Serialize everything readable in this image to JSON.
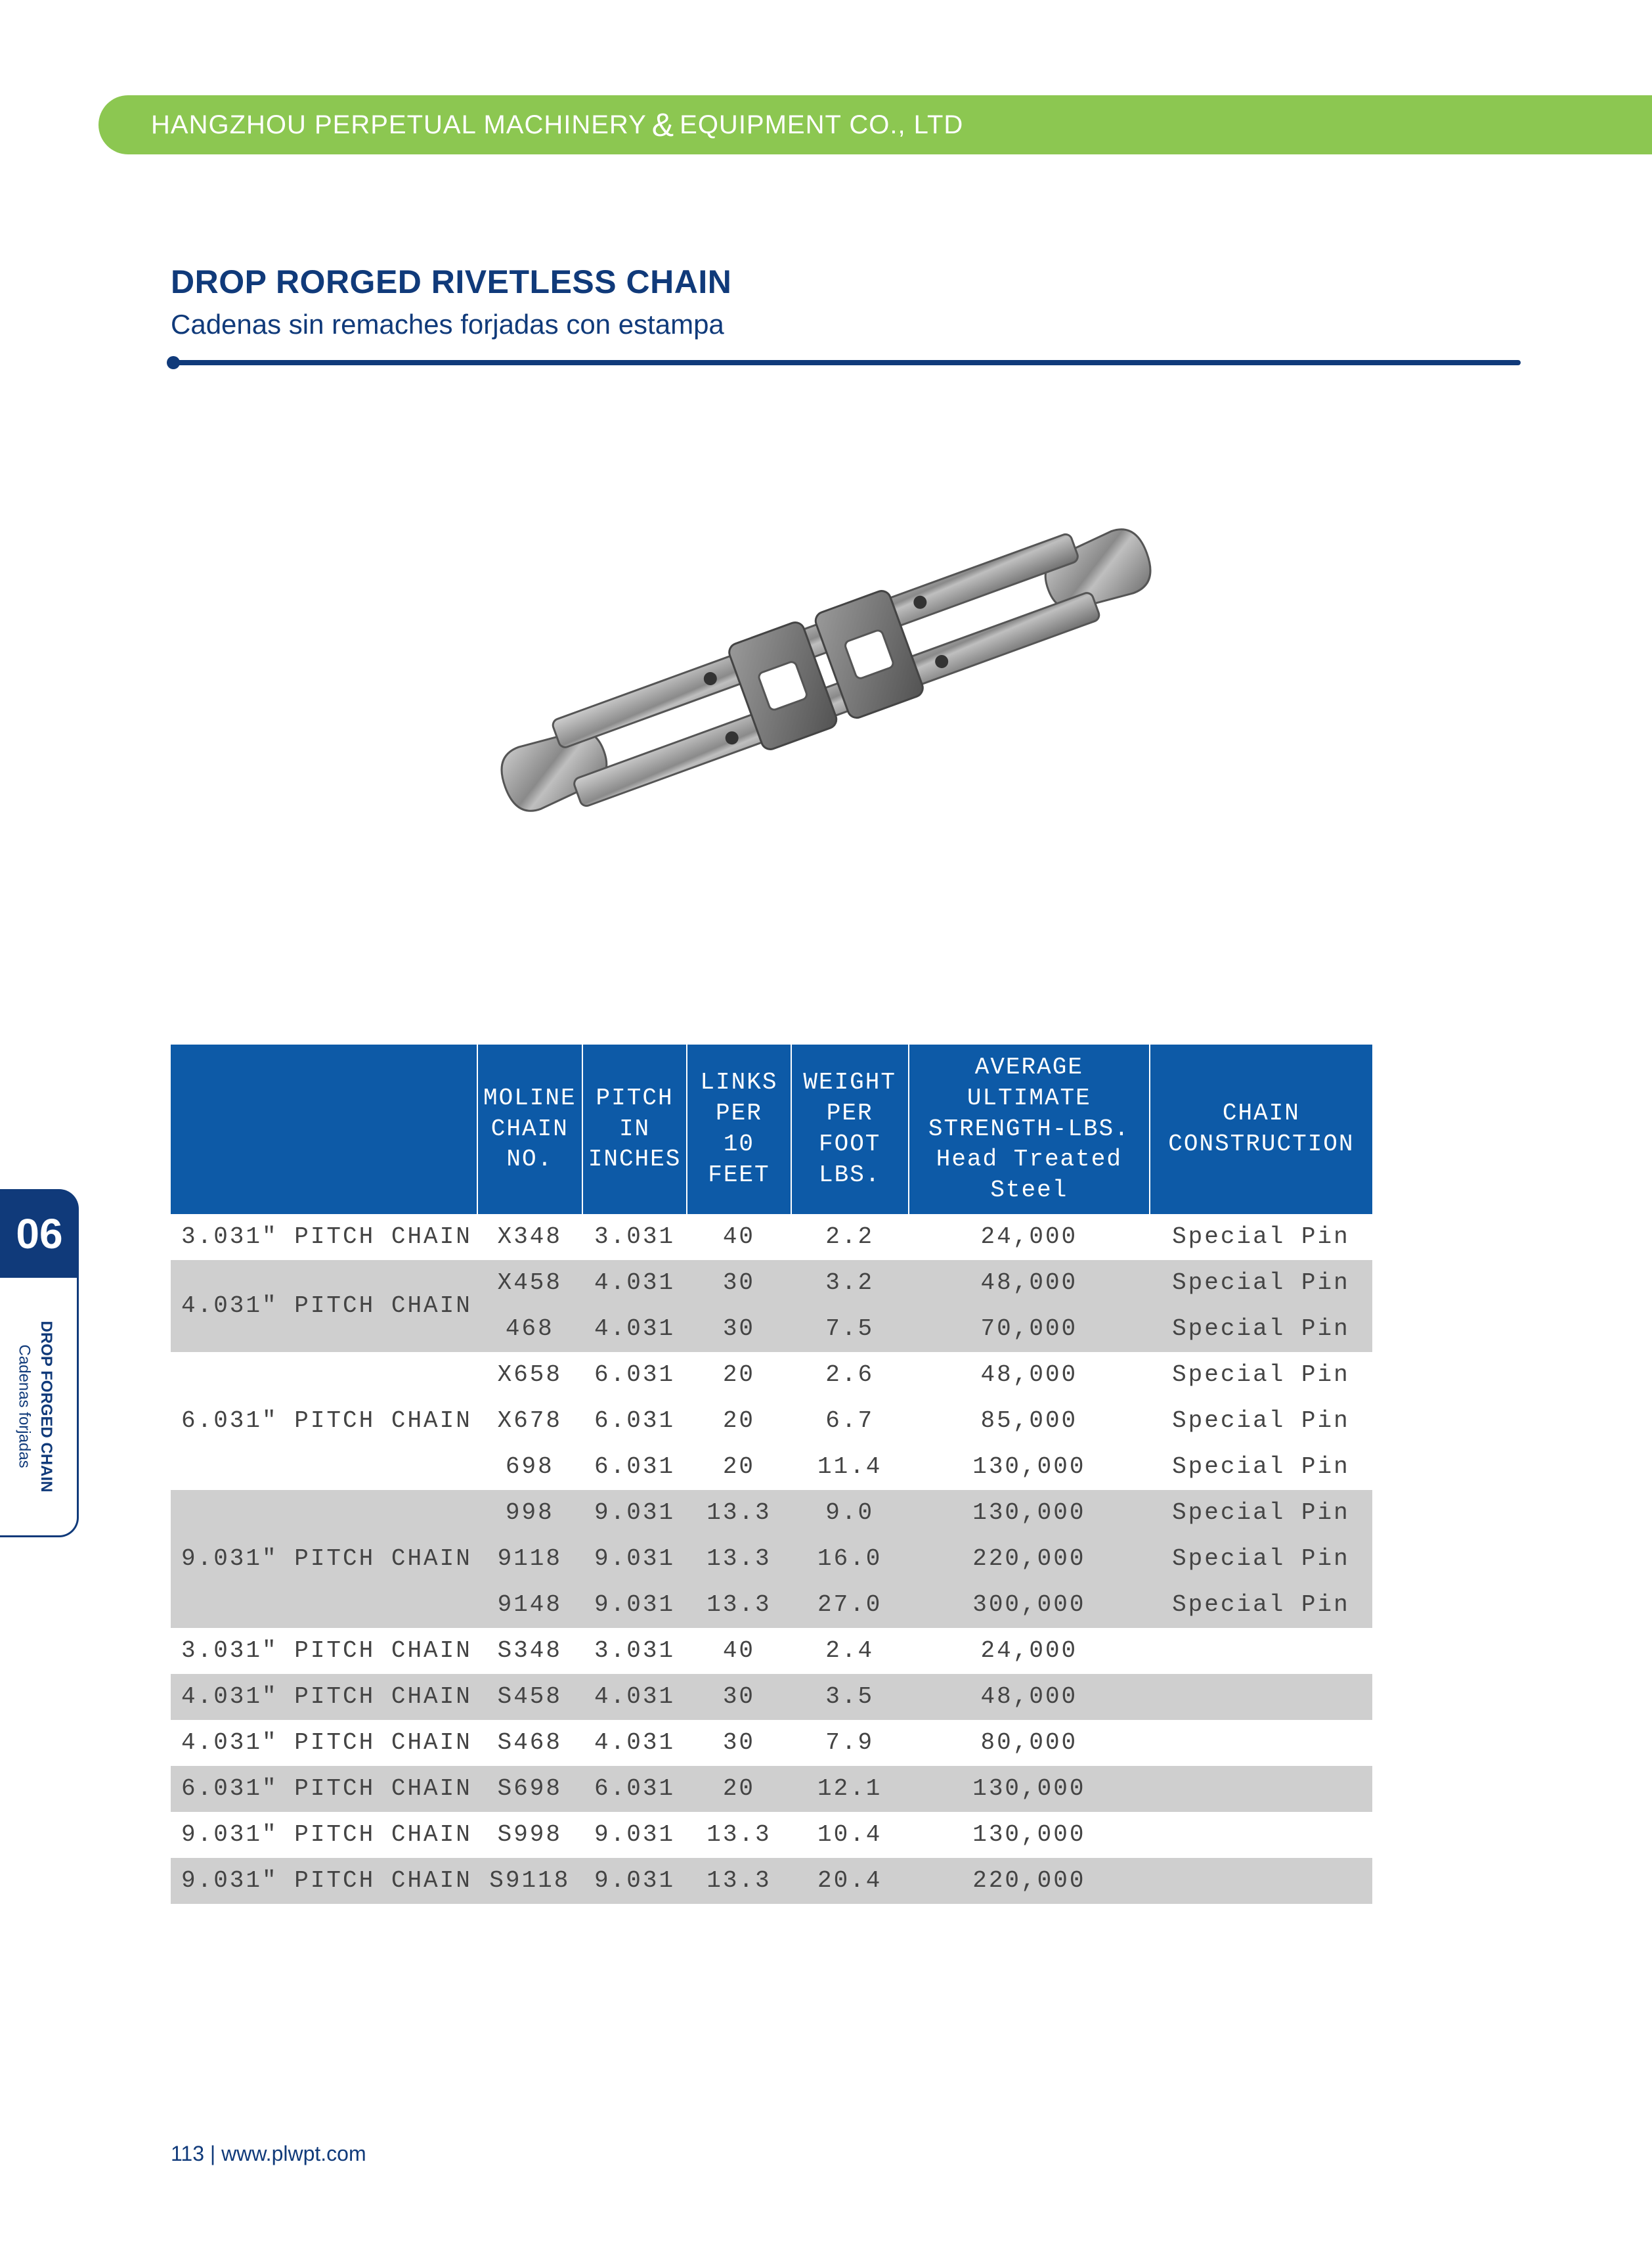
{
  "header": {
    "company_left": "HANGZHOU PERPETUAL MACHINERY",
    "amp": "&",
    "company_right": "EQUIPMENT CO., LTD"
  },
  "title": {
    "en": "DROP RORGED RIVETLESS CHAIN",
    "es": "Cadenas sin remaches forjadas con estampa"
  },
  "side": {
    "num": "06",
    "line1": "DROP FORGED CHAIN",
    "line2": "Cadenas forjadas"
  },
  "footer": {
    "page": "113",
    "sep": "|",
    "url": "www.plwpt.com"
  },
  "table": {
    "columns": [
      "",
      "MOLINE CHAIN NO.",
      "PITCH IN INCHES",
      "LINKS PER 10 FEET",
      "WEIGHT PER FOOT LBS.",
      "AVERAGE ULTIMATE STRENGTH-LBS. Head Treated Steel",
      "CHAIN CONSTRUCTION"
    ],
    "col_widths": [
      "360px",
      "160px",
      "150px",
      "170px",
      "190px",
      "440px",
      "360px"
    ],
    "groups": [
      {
        "label": "3.031\" PITCH CHAIN",
        "shade": "light",
        "rows": [
          {
            "no": "X348",
            "pitch": "3.031",
            "links": "40",
            "weight": "2.2",
            "strength": "24,000",
            "constr": "Special Pin"
          }
        ]
      },
      {
        "label": "4.031\" PITCH CHAIN",
        "shade": "dark",
        "rows": [
          {
            "no": "X458",
            "pitch": "4.031",
            "links": "30",
            "weight": "3.2",
            "strength": "48,000",
            "constr": "Special Pin"
          },
          {
            "no": "468",
            "pitch": "4.031",
            "links": "30",
            "weight": "7.5",
            "strength": "70,000",
            "constr": "Special Pin"
          }
        ]
      },
      {
        "label": "6.031\" PITCH CHAIN",
        "shade": "light",
        "rows": [
          {
            "no": "X658",
            "pitch": "6.031",
            "links": "20",
            "weight": "2.6",
            "strength": "48,000",
            "constr": "Special Pin"
          },
          {
            "no": "X678",
            "pitch": "6.031",
            "links": "20",
            "weight": "6.7",
            "strength": "85,000",
            "constr": "Special Pin"
          },
          {
            "no": "698",
            "pitch": "6.031",
            "links": "20",
            "weight": "11.4",
            "strength": "130,000",
            "constr": "Special Pin"
          }
        ]
      },
      {
        "label": "9.031\" PITCH CHAIN",
        "shade": "dark",
        "rows": [
          {
            "no": "998",
            "pitch": "9.031",
            "links": "13.3",
            "weight": "9.0",
            "strength": "130,000",
            "constr": "Special Pin"
          },
          {
            "no": "9118",
            "pitch": "9.031",
            "links": "13.3",
            "weight": "16.0",
            "strength": "220,000",
            "constr": "Special Pin"
          },
          {
            "no": "9148",
            "pitch": "9.031",
            "links": "13.3",
            "weight": "27.0",
            "strength": "300,000",
            "constr": "Special Pin"
          }
        ]
      },
      {
        "label": "3.031\" PITCH CHAIN",
        "shade": "light",
        "rows": [
          {
            "no": "S348",
            "pitch": "3.031",
            "links": "40",
            "weight": "2.4",
            "strength": "24,000",
            "constr": ""
          }
        ]
      },
      {
        "label": "4.031\" PITCH CHAIN",
        "shade": "dark",
        "rows": [
          {
            "no": "S458",
            "pitch": "4.031",
            "links": "30",
            "weight": "3.5",
            "strength": "48,000",
            "constr": ""
          }
        ]
      },
      {
        "label": "4.031\" PITCH CHAIN",
        "shade": "light",
        "rows": [
          {
            "no": "S468",
            "pitch": "4.031",
            "links": "30",
            "weight": "7.9",
            "strength": "80,000",
            "constr": ""
          }
        ]
      },
      {
        "label": "6.031\" PITCH CHAIN",
        "shade": "dark",
        "rows": [
          {
            "no": "S698",
            "pitch": "6.031",
            "links": "20",
            "weight": "12.1",
            "strength": "130,000",
            "constr": ""
          }
        ]
      },
      {
        "label": "9.031\" PITCH CHAIN",
        "shade": "light",
        "rows": [
          {
            "no": "S998",
            "pitch": "9.031",
            "links": "13.3",
            "weight": "10.4",
            "strength": "130,000",
            "constr": ""
          }
        ]
      },
      {
        "label": "9.031\" PITCH CHAIN",
        "shade": "dark",
        "rows": [
          {
            "no": "S9118",
            "pitch": "9.031",
            "links": "13.3",
            "weight": "20.4",
            "strength": "220,000",
            "constr": ""
          }
        ]
      }
    ]
  }
}
